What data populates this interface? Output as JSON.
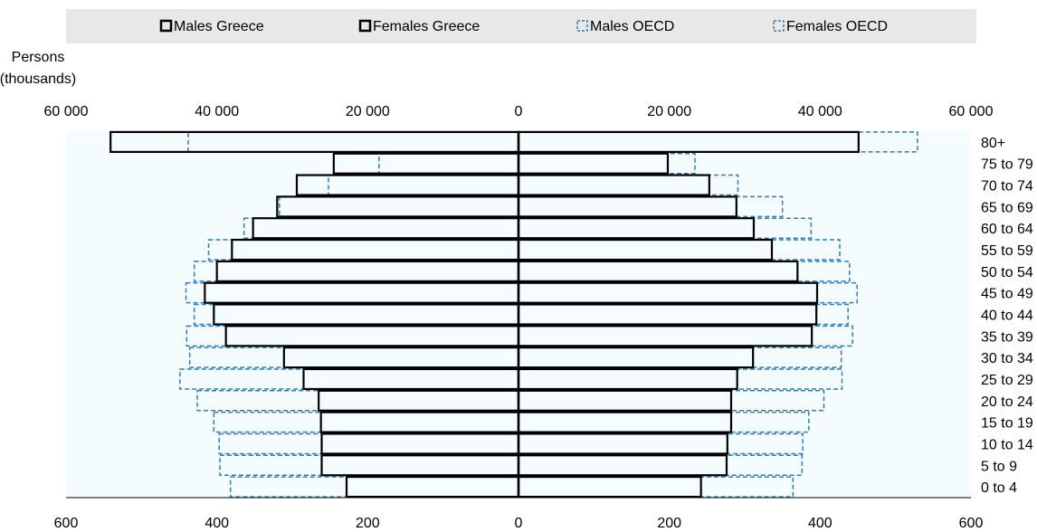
{
  "chart_data": {
    "type": "bar",
    "orientation": "horizontal-population-pyramid",
    "categories": [
      "80+",
      "75 to 79",
      "70 to 74",
      "65 to 69",
      "60 to 64",
      "55 to 59",
      "50 to 54",
      "45 to 49",
      "40 to 44",
      "35 to 39",
      "30 to 34",
      "25 to 29",
      "20 to 24",
      "15 to 19",
      "10 to 14",
      "5 to 9",
      "0 to 4"
    ],
    "ylabel_line1": "Persons",
    "ylabel_line2": "(thousands)",
    "top_axis": {
      "range": [
        -60000,
        60000
      ],
      "ticks": [
        -60000,
        -40000,
        -20000,
        0,
        20000,
        40000,
        60000
      ],
      "tick_labels": [
        "60 000",
        "40 000",
        "20 000",
        "0",
        "20 000",
        "40 000",
        "60 000"
      ]
    },
    "bottom_axis": {
      "range": [
        -600,
        600
      ],
      "ticks": [
        -600,
        -400,
        -200,
        0,
        200,
        400,
        600
      ],
      "tick_labels": [
        "600",
        "400",
        "200",
        "0",
        "200",
        "400",
        "600"
      ]
    },
    "legend_position": "top",
    "series": [
      {
        "name": "Males Greece",
        "axis": "bottom",
        "side": "left",
        "style": "solid",
        "color": "#000000",
        "values": [
          541,
          245,
          294,
          320,
          352,
          380,
          400,
          416,
          404,
          388,
          311,
          285,
          265,
          262,
          261,
          261,
          228
        ]
      },
      {
        "name": "Females Greece",
        "axis": "bottom",
        "side": "right",
        "style": "solid",
        "color": "#000000",
        "values": [
          451,
          198,
          253,
          289,
          312,
          336,
          370,
          396,
          395,
          389,
          311,
          290,
          282,
          282,
          277,
          276,
          242
        ]
      },
      {
        "name": "Males OECD",
        "axis": "top",
        "side": "left",
        "style": "dashed",
        "color": "#2b7fc3",
        "values": [
          43800,
          18500,
          25200,
          31700,
          36400,
          41100,
          43000,
          44100,
          43000,
          44000,
          43600,
          44900,
          42600,
          40400,
          39700,
          39600,
          38200
        ]
      },
      {
        "name": "Females OECD",
        "axis": "top",
        "side": "right",
        "style": "dashed",
        "color": "#2b7fc3",
        "values": [
          52900,
          23400,
          29100,
          35000,
          38800,
          42600,
          43900,
          44900,
          43700,
          44300,
          42800,
          42900,
          40500,
          38500,
          37700,
          37600,
          36400
        ]
      }
    ]
  }
}
